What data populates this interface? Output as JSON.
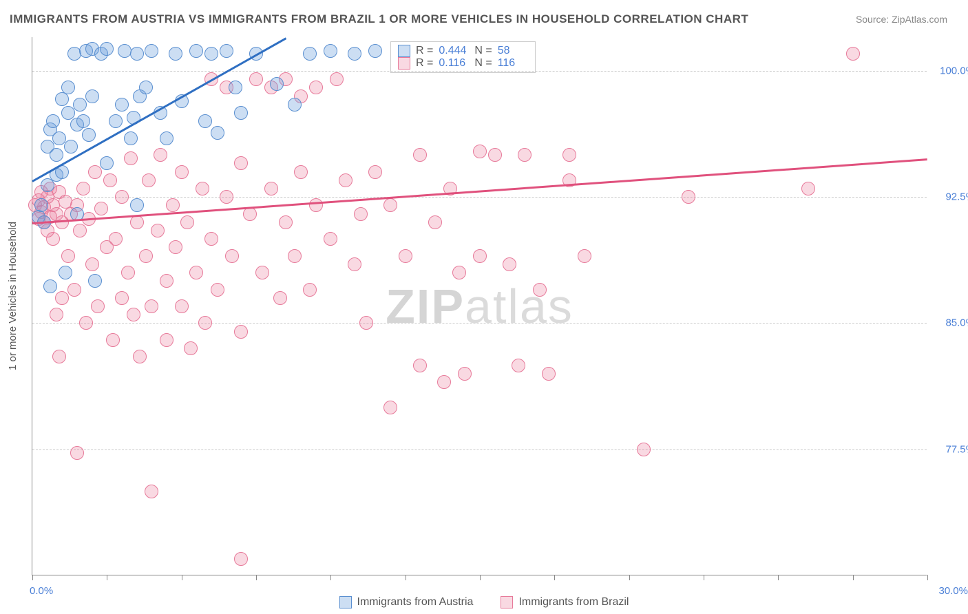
{
  "title": "IMMIGRANTS FROM AUSTRIA VS IMMIGRANTS FROM BRAZIL 1 OR MORE VEHICLES IN HOUSEHOLD CORRELATION CHART",
  "source": "Source: ZipAtlas.com",
  "ylabel": "1 or more Vehicles in Household",
  "watermark_a": "ZIP",
  "watermark_b": "atlas",
  "chart": {
    "type": "scatter",
    "xlim": [
      0,
      30
    ],
    "ylim": [
      70,
      102
    ],
    "x_start_label": "0.0%",
    "x_end_label": "30.0%",
    "y_tick_values": [
      77.5,
      85.0,
      92.5,
      100.0
    ],
    "y_tick_labels": [
      "77.5%",
      "85.0%",
      "92.5%",
      "100.0%"
    ],
    "x_tick_step": 2.5,
    "grid_color": "#cccccc",
    "background_color": "#ffffff"
  },
  "series": {
    "austria": {
      "label": "Immigrants from Austria",
      "color_fill": "rgba(108,160,220,0.35)",
      "color_stroke": "#5a8fd0",
      "marker_radius": 10,
      "R": "0.444",
      "N": "58",
      "trend": {
        "x1": 0,
        "y1": 93.5,
        "x2": 8.5,
        "y2": 102,
        "color": "#2f6fc2",
        "width": 3
      },
      "points": [
        [
          0.2,
          91.3
        ],
        [
          0.3,
          92.0
        ],
        [
          0.4,
          91.0
        ],
        [
          0.5,
          93.2
        ],
        [
          0.5,
          95.5
        ],
        [
          0.6,
          96.5
        ],
        [
          0.6,
          87.2
        ],
        [
          0.7,
          97.0
        ],
        [
          0.8,
          93.8
        ],
        [
          0.8,
          95.0
        ],
        [
          0.9,
          96.0
        ],
        [
          1.0,
          98.3
        ],
        [
          1.0,
          94.0
        ],
        [
          1.1,
          88.0
        ],
        [
          1.2,
          97.5
        ],
        [
          1.2,
          99.0
        ],
        [
          1.3,
          95.5
        ],
        [
          1.4,
          101.0
        ],
        [
          1.5,
          96.8
        ],
        [
          1.5,
          91.5
        ],
        [
          1.6,
          98.0
        ],
        [
          1.7,
          97.0
        ],
        [
          1.8,
          101.2
        ],
        [
          1.9,
          96.2
        ],
        [
          2.0,
          101.3
        ],
        [
          2.0,
          98.5
        ],
        [
          2.1,
          87.5
        ],
        [
          2.3,
          101.0
        ],
        [
          2.5,
          94.5
        ],
        [
          2.5,
          101.3
        ],
        [
          2.8,
          97.0
        ],
        [
          3.0,
          98.0
        ],
        [
          3.1,
          101.2
        ],
        [
          3.3,
          96.0
        ],
        [
          3.4,
          97.2
        ],
        [
          3.5,
          101.0
        ],
        [
          3.5,
          92.0
        ],
        [
          3.6,
          98.5
        ],
        [
          3.8,
          99.0
        ],
        [
          4.0,
          101.2
        ],
        [
          4.3,
          97.5
        ],
        [
          4.5,
          96.0
        ],
        [
          4.8,
          101.0
        ],
        [
          5.0,
          98.2
        ],
        [
          5.5,
          101.2
        ],
        [
          5.8,
          97.0
        ],
        [
          6.0,
          101.0
        ],
        [
          6.2,
          96.3
        ],
        [
          6.5,
          101.2
        ],
        [
          6.8,
          99.0
        ],
        [
          7.0,
          97.5
        ],
        [
          7.5,
          101.0
        ],
        [
          8.2,
          99.2
        ],
        [
          8.8,
          98.0
        ],
        [
          9.3,
          101.0
        ],
        [
          10.0,
          101.2
        ],
        [
          10.8,
          101.0
        ],
        [
          11.5,
          101.2
        ]
      ]
    },
    "brazil": {
      "label": "Immigrants from Brazil",
      "color_fill": "rgba(235,120,150,0.28)",
      "color_stroke": "#e77a9a",
      "marker_radius": 10,
      "R": "0.116",
      "N": "116",
      "trend": {
        "x1": 0,
        "y1": 91.0,
        "x2": 30,
        "y2": 94.8,
        "color": "#e0517d",
        "width": 3
      },
      "points": [
        [
          0.1,
          92.0
        ],
        [
          0.2,
          91.2
        ],
        [
          0.2,
          92.3
        ],
        [
          0.3,
          91.6
        ],
        [
          0.3,
          92.8
        ],
        [
          0.4,
          91.0
        ],
        [
          0.4,
          91.9
        ],
        [
          0.5,
          90.5
        ],
        [
          0.5,
          92.5
        ],
        [
          0.6,
          91.3
        ],
        [
          0.6,
          93.0
        ],
        [
          0.7,
          90.0
        ],
        [
          0.7,
          92.0
        ],
        [
          0.8,
          91.5
        ],
        [
          0.8,
          85.5
        ],
        [
          0.9,
          92.8
        ],
        [
          0.9,
          83.0
        ],
        [
          1.0,
          91.0
        ],
        [
          1.0,
          86.5
        ],
        [
          1.1,
          92.2
        ],
        [
          1.2,
          89.0
        ],
        [
          1.3,
          91.5
        ],
        [
          1.4,
          87.0
        ],
        [
          1.5,
          92.0
        ],
        [
          1.5,
          77.3
        ],
        [
          1.6,
          90.5
        ],
        [
          1.7,
          93.0
        ],
        [
          1.8,
          85.0
        ],
        [
          1.9,
          91.2
        ],
        [
          2.0,
          88.5
        ],
        [
          2.1,
          94.0
        ],
        [
          2.2,
          86.0
        ],
        [
          2.3,
          91.8
        ],
        [
          2.5,
          89.5
        ],
        [
          2.6,
          93.5
        ],
        [
          2.7,
          84.0
        ],
        [
          2.8,
          90.0
        ],
        [
          3.0,
          92.5
        ],
        [
          3.0,
          86.5
        ],
        [
          3.2,
          88.0
        ],
        [
          3.3,
          94.8
        ],
        [
          3.4,
          85.5
        ],
        [
          3.5,
          91.0
        ],
        [
          3.6,
          83.0
        ],
        [
          3.8,
          89.0
        ],
        [
          3.9,
          93.5
        ],
        [
          4.0,
          86.0
        ],
        [
          4.0,
          75.0
        ],
        [
          4.2,
          90.5
        ],
        [
          4.3,
          95.0
        ],
        [
          4.5,
          87.5
        ],
        [
          4.5,
          84.0
        ],
        [
          4.7,
          92.0
        ],
        [
          4.8,
          89.5
        ],
        [
          5.0,
          94.0
        ],
        [
          5.0,
          86.0
        ],
        [
          5.2,
          91.0
        ],
        [
          5.3,
          83.5
        ],
        [
          5.5,
          88.0
        ],
        [
          5.7,
          93.0
        ],
        [
          5.8,
          85.0
        ],
        [
          6.0,
          90.0
        ],
        [
          6.0,
          99.5
        ],
        [
          6.2,
          87.0
        ],
        [
          6.5,
          92.5
        ],
        [
          6.5,
          99.0
        ],
        [
          6.7,
          89.0
        ],
        [
          7.0,
          94.5
        ],
        [
          7.0,
          84.5
        ],
        [
          7.0,
          71.0
        ],
        [
          7.3,
          91.5
        ],
        [
          7.5,
          99.5
        ],
        [
          7.7,
          88.0
        ],
        [
          8.0,
          93.0
        ],
        [
          8.0,
          99.0
        ],
        [
          8.3,
          86.5
        ],
        [
          8.5,
          91.0
        ],
        [
          8.5,
          99.5
        ],
        [
          8.8,
          89.0
        ],
        [
          9.0,
          94.0
        ],
        [
          9.0,
          98.5
        ],
        [
          9.3,
          87.0
        ],
        [
          9.5,
          92.0
        ],
        [
          9.5,
          99.0
        ],
        [
          10.0,
          90.0
        ],
        [
          10.2,
          99.5
        ],
        [
          10.5,
          93.5
        ],
        [
          10.8,
          88.5
        ],
        [
          11.0,
          91.5
        ],
        [
          11.2,
          85.0
        ],
        [
          11.5,
          94.0
        ],
        [
          12.0,
          92.0
        ],
        [
          12.0,
          80.0
        ],
        [
          12.5,
          89.0
        ],
        [
          13.0,
          95.0
        ],
        [
          13.0,
          82.5
        ],
        [
          13.5,
          91.0
        ],
        [
          13.8,
          81.5
        ],
        [
          14.0,
          93.0
        ],
        [
          14.3,
          88.0
        ],
        [
          14.5,
          82.0
        ],
        [
          15.0,
          95.2
        ],
        [
          15.0,
          89.0
        ],
        [
          15.5,
          95.0
        ],
        [
          16.0,
          88.5
        ],
        [
          16.3,
          82.5
        ],
        [
          16.5,
          95.0
        ],
        [
          17.0,
          87.0
        ],
        [
          17.3,
          82.0
        ],
        [
          18.0,
          93.5
        ],
        [
          18.0,
          95.0
        ],
        [
          18.5,
          89.0
        ],
        [
          20.5,
          77.5
        ],
        [
          22.0,
          92.5
        ],
        [
          26.0,
          93.0
        ],
        [
          27.5,
          101.0
        ]
      ]
    }
  },
  "legend": {
    "r_label": "R =",
    "n_label": "N ="
  }
}
